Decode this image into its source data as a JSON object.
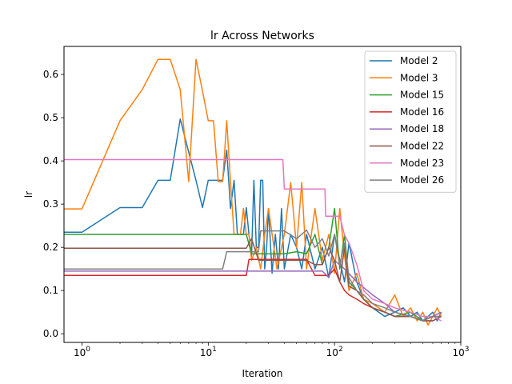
{
  "chart_data": {
    "type": "line",
    "title": "lr Across Networks",
    "xlabel": "Iteration",
    "ylabel": "lr",
    "xscale": "log",
    "xlim": [
      0.72,
      1000
    ],
    "ylim": [
      -0.02,
      0.665
    ],
    "grid": false,
    "legend_position": "top-right",
    "x_ticks": [
      {
        "value": 1,
        "base": "10",
        "exp": "0"
      },
      {
        "value": 10,
        "base": "10",
        "exp": "1"
      },
      {
        "value": 100,
        "base": "10",
        "exp": "2"
      },
      {
        "value": 1000,
        "base": "10",
        "exp": "3"
      }
    ],
    "y_ticks": [
      "0.0",
      "0.1",
      "0.2",
      "0.3",
      "0.4",
      "0.5",
      "0.6"
    ],
    "series": [
      {
        "name": "Model 2",
        "color": "#1f77b4",
        "x": [
          0.72,
          1,
          2,
          3,
          4,
          5,
          6,
          7,
          8,
          9,
          10,
          11,
          12,
          13,
          14,
          15,
          16,
          17,
          18,
          19,
          20,
          21,
          22,
          23,
          24,
          25,
          26,
          27,
          28,
          29,
          30,
          32,
          34,
          36,
          38,
          40,
          45,
          50,
          55,
          60,
          70,
          80,
          90,
          100,
          110,
          120,
          130,
          150,
          170,
          200,
          250,
          300,
          350,
          400,
          450,
          500,
          550,
          600,
          650,
          700
        ],
        "y": [
          0.235,
          0.235,
          0.292,
          0.292,
          0.355,
          0.355,
          0.497,
          0.42,
          0.355,
          0.292,
          0.355,
          0.355,
          0.355,
          0.355,
          0.425,
          0.29,
          0.355,
          0.23,
          0.23,
          0.23,
          0.292,
          0.23,
          0.18,
          0.355,
          0.2,
          0.2,
          0.355,
          0.355,
          0.15,
          0.2,
          0.29,
          0.14,
          0.23,
          0.15,
          0.29,
          0.15,
          0.23,
          0.2,
          0.15,
          0.23,
          0.15,
          0.2,
          0.13,
          0.23,
          0.17,
          0.12,
          0.21,
          0.12,
          0.08,
          0.06,
          0.04,
          0.05,
          0.06,
          0.04,
          0.05,
          0.03,
          0.04,
          0.05,
          0.03,
          0.05
        ]
      },
      {
        "name": "Model 3",
        "color": "#ff7f0e",
        "x": [
          0.72,
          1,
          2,
          3,
          4,
          5,
          6,
          7,
          8,
          9,
          10,
          11,
          12,
          13,
          14,
          15,
          16,
          17,
          18,
          19,
          20,
          21,
          22,
          24,
          26,
          28,
          30,
          35,
          40,
          45,
          50,
          55,
          60,
          70,
          80,
          90,
          100,
          110,
          120,
          130,
          150,
          170,
          200,
          250,
          300,
          350,
          400,
          450,
          500,
          550,
          600,
          650,
          700
        ],
        "y": [
          0.289,
          0.289,
          0.493,
          0.565,
          0.635,
          0.635,
          0.565,
          0.352,
          0.635,
          0.562,
          0.493,
          0.493,
          0.352,
          0.352,
          0.493,
          0.352,
          0.23,
          0.23,
          0.23,
          0.29,
          0.23,
          0.23,
          0.17,
          0.2,
          0.15,
          0.23,
          0.29,
          0.15,
          0.23,
          0.35,
          0.2,
          0.35,
          0.15,
          0.29,
          0.17,
          0.23,
          0.14,
          0.29,
          0.18,
          0.1,
          0.14,
          0.08,
          0.07,
          0.05,
          0.09,
          0.04,
          0.06,
          0.03,
          0.05,
          0.02,
          0.04,
          0.06,
          0.04
        ]
      },
      {
        "name": "Model 15",
        "color": "#2ca02c",
        "x": [
          0.72,
          10,
          20,
          22,
          25,
          30,
          40,
          50,
          60,
          70,
          80,
          90,
          100,
          110,
          120,
          130,
          150,
          170,
          200,
          250,
          300,
          400,
          500,
          600,
          700
        ],
        "y": [
          0.23,
          0.23,
          0.23,
          0.185,
          0.185,
          0.185,
          0.185,
          0.19,
          0.185,
          0.23,
          0.16,
          0.2,
          0.29,
          0.15,
          0.23,
          0.12,
          0.1,
          0.08,
          0.06,
          0.05,
          0.04,
          0.05,
          0.03,
          0.04,
          0.04
        ]
      },
      {
        "name": "Model 16",
        "color": "#d62728",
        "x": [
          0.72,
          10,
          20,
          21,
          30,
          40,
          50,
          60,
          70,
          80,
          90,
          100,
          110,
          120,
          130,
          150,
          170,
          200,
          250,
          300,
          400,
          500,
          600,
          700
        ],
        "y": [
          0.135,
          0.135,
          0.135,
          0.172,
          0.172,
          0.172,
          0.172,
          0.172,
          0.135,
          0.135,
          0.135,
          0.15,
          0.12,
          0.1,
          0.09,
          0.08,
          0.07,
          0.06,
          0.05,
          0.04,
          0.04,
          0.03,
          0.03,
          0.04
        ]
      },
      {
        "name": "Model 18",
        "color": "#9467bd",
        "x": [
          0.72,
          10,
          20,
          22,
          30,
          40,
          50,
          60,
          70,
          80,
          90,
          100,
          120,
          150,
          200,
          250,
          300,
          400,
          500,
          600,
          700
        ],
        "y": [
          0.145,
          0.145,
          0.145,
          0.145,
          0.145,
          0.145,
          0.145,
          0.145,
          0.145,
          0.145,
          0.13,
          0.17,
          0.15,
          0.12,
          0.09,
          0.07,
          0.05,
          0.04,
          0.03,
          0.04,
          0.05
        ]
      },
      {
        "name": "Model 22",
        "color": "#8c564b",
        "x": [
          0.72,
          10,
          20,
          22,
          25,
          30,
          40,
          50,
          60,
          70,
          80,
          90,
          100,
          110,
          120,
          130,
          150,
          170,
          200,
          250,
          300,
          400,
          500,
          600,
          700
        ],
        "y": [
          0.198,
          0.198,
          0.198,
          0.22,
          0.17,
          0.17,
          0.17,
          0.17,
          0.17,
          0.16,
          0.16,
          0.2,
          0.17,
          0.12,
          0.2,
          0.11,
          0.1,
          0.08,
          0.06,
          0.05,
          0.04,
          0.04,
          0.03,
          0.03,
          0.04
        ]
      },
      {
        "name": "Model 23",
        "color": "#e377c2",
        "x": [
          0.72,
          10,
          20,
          30,
          39,
          40,
          50,
          60,
          70,
          84,
          85,
          100,
          110,
          120,
          130,
          150,
          170,
          200,
          250,
          300,
          400,
          500,
          600,
          700
        ],
        "y": [
          0.403,
          0.403,
          0.403,
          0.403,
          0.403,
          0.335,
          0.335,
          0.335,
          0.335,
          0.335,
          0.272,
          0.272,
          0.272,
          0.228,
          0.21,
          0.16,
          0.1,
          0.08,
          0.07,
          0.06,
          0.05,
          0.04,
          0.04,
          0.03
        ]
      },
      {
        "name": "Model 26",
        "color": "#7f7f7f",
        "x": [
          0.72,
          10,
          13,
          14,
          20,
          25,
          26,
          30,
          40,
          50,
          60,
          70,
          80,
          90,
          100,
          110,
          120,
          130,
          150,
          170,
          200,
          250,
          300,
          400,
          500,
          600,
          700
        ],
        "y": [
          0.15,
          0.15,
          0.15,
          0.19,
          0.19,
          0.19,
          0.238,
          0.238,
          0.238,
          0.22,
          0.24,
          0.2,
          0.22,
          0.18,
          0.23,
          0.16,
          0.21,
          0.13,
          0.1,
          0.09,
          0.07,
          0.06,
          0.05,
          0.04,
          0.03,
          0.04,
          0.04
        ]
      }
    ]
  }
}
